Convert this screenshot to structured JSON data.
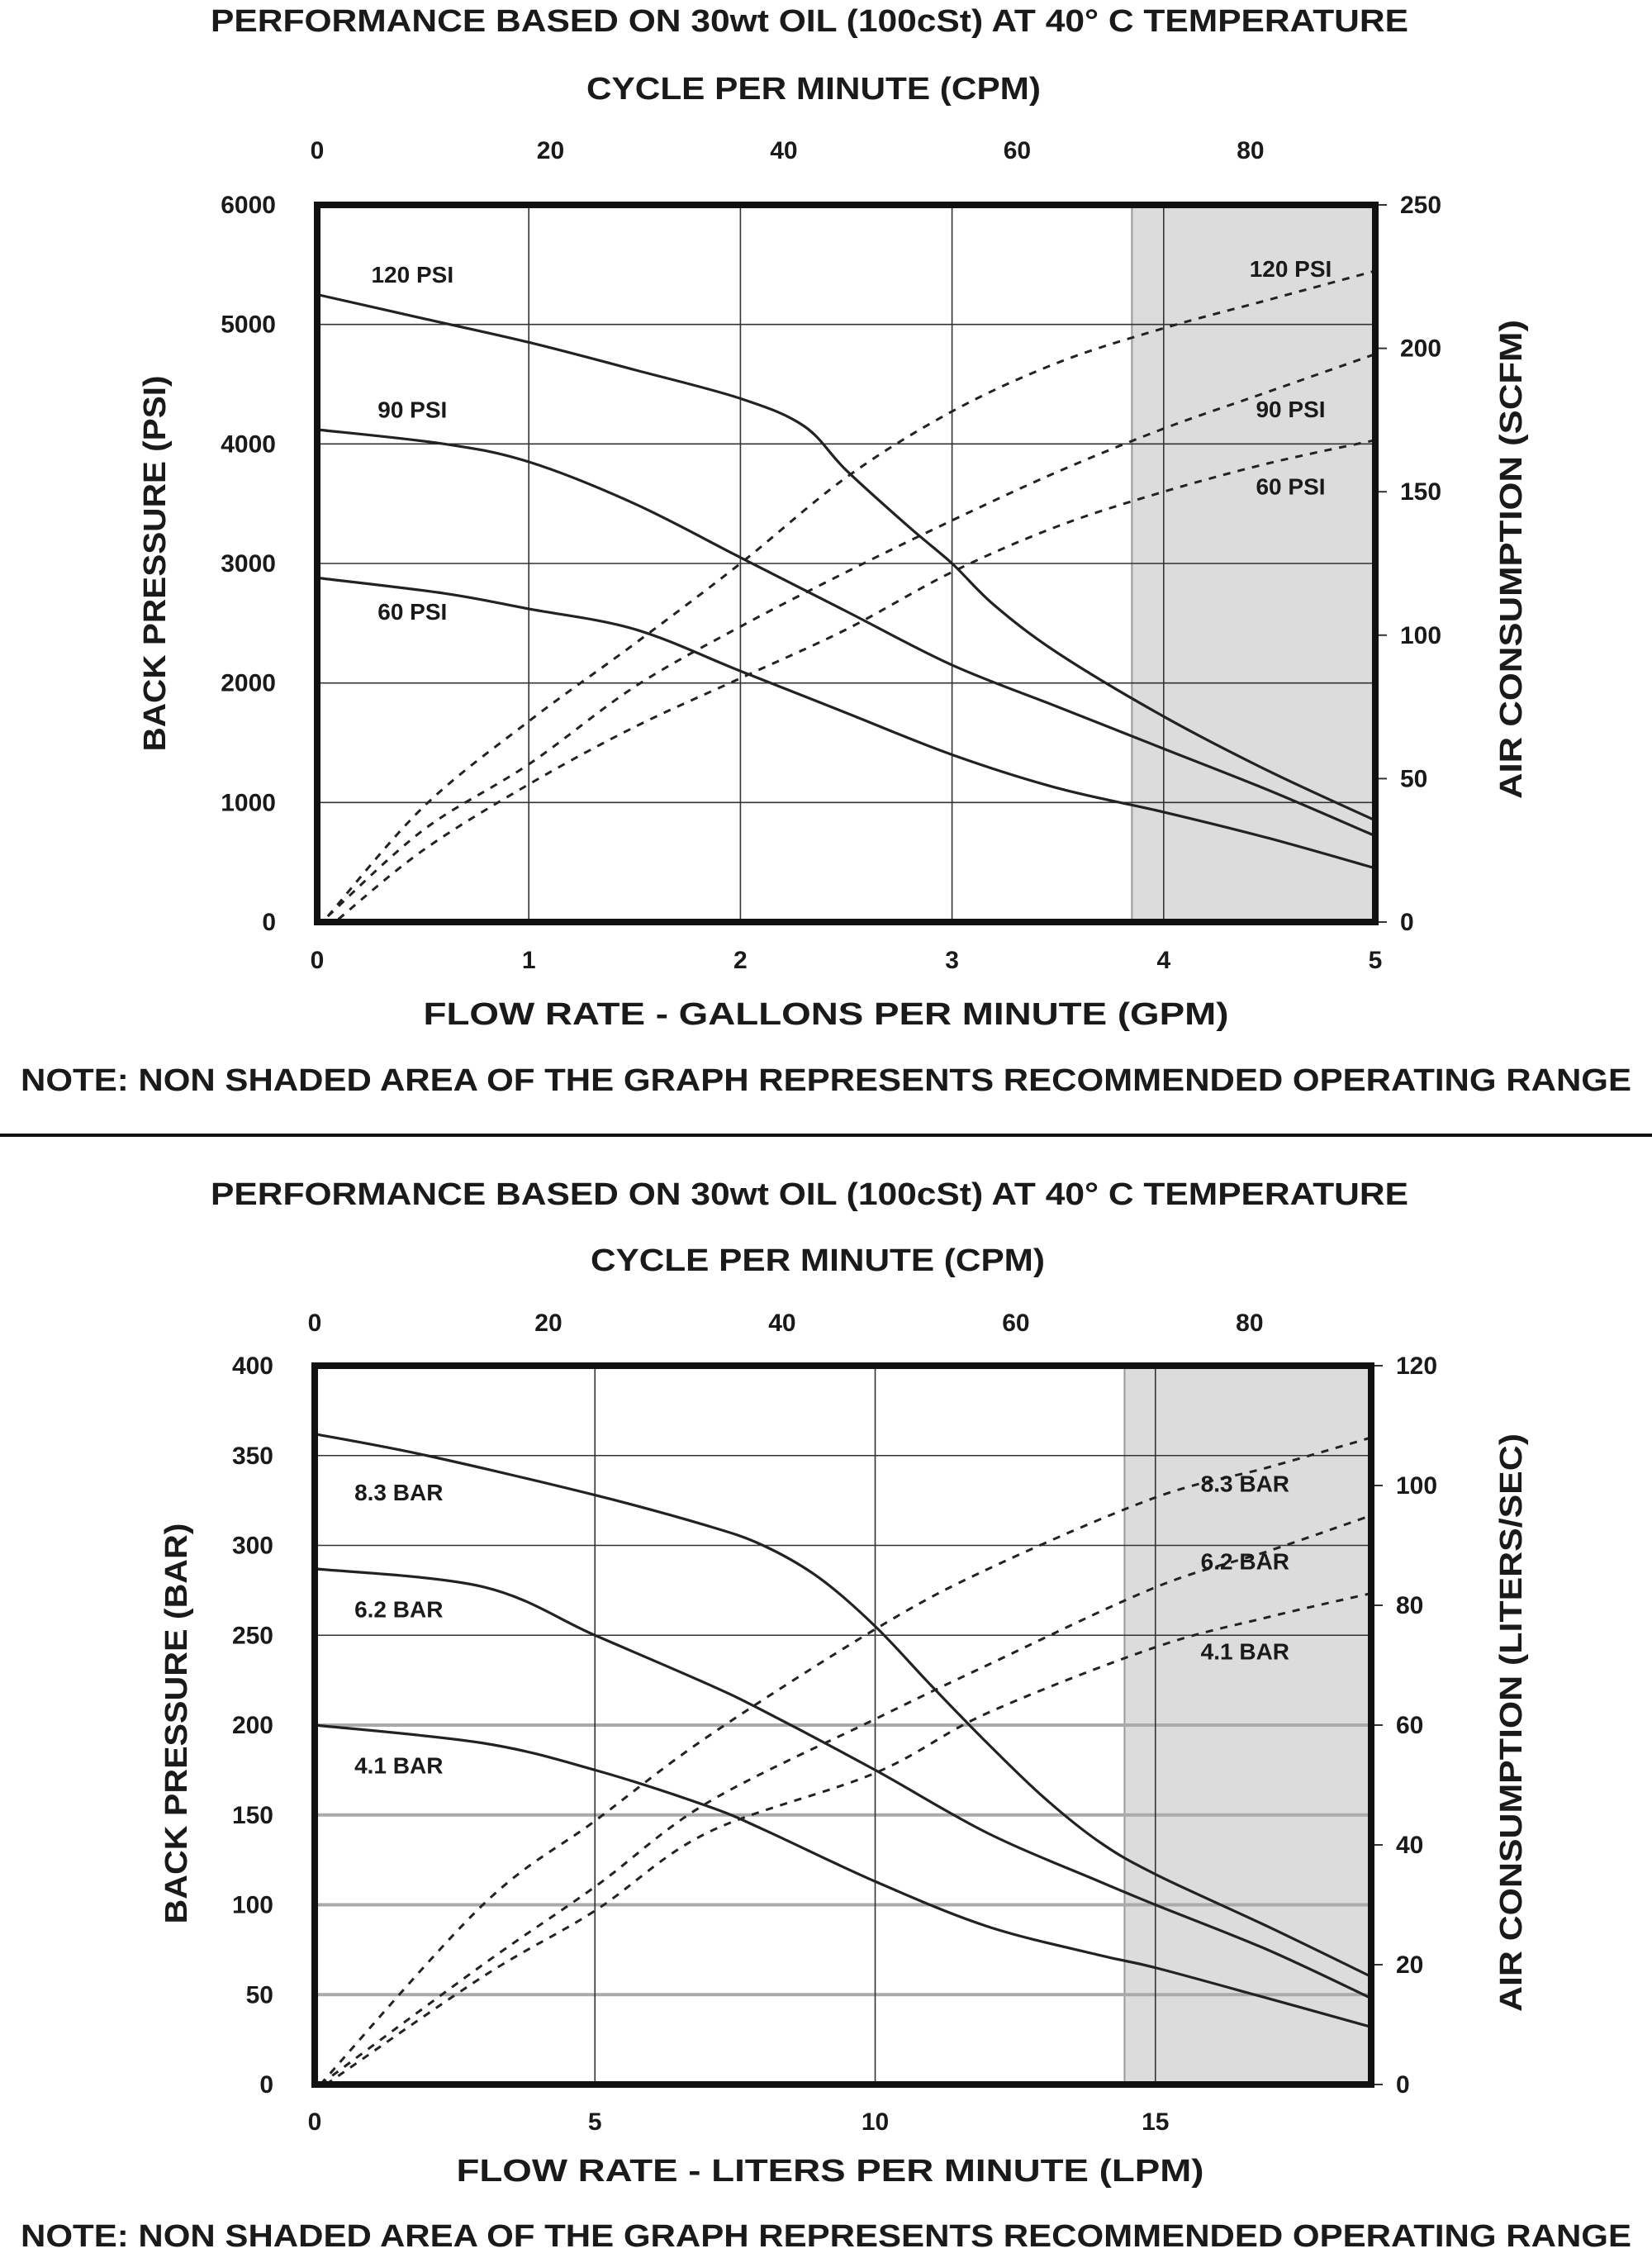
{
  "chart_data": [
    {
      "type": "line",
      "title": "PERFORMANCE BASED ON 30wt OIL (100cSt) AT 40° C TEMPERATURE",
      "top_axis_label": "CYCLE PER MINUTE (CPM)",
      "top_ticks": [
        "0",
        "20",
        "40",
        "60",
        "80"
      ],
      "top_tick_values": [
        0,
        20,
        40,
        60,
        80
      ],
      "xlim_top": [
        0,
        90.7
      ],
      "xlabel": "FLOW RATE - GALLONS PER MINUTE (GPM)",
      "xlim": [
        0,
        5
      ],
      "xticks": [
        0,
        1,
        2,
        3,
        4,
        5
      ],
      "ylabel": "BACK PRESSURE  (PSI)",
      "ylim": [
        0,
        6000
      ],
      "yticks": [
        0,
        1000,
        2000,
        3000,
        4000,
        5000,
        6000
      ],
      "y2label": "AIR CONSUMPTION  (SCFM)",
      "y2lim": [
        0,
        250
      ],
      "y2ticks": [
        0,
        50,
        100,
        150,
        200,
        250
      ],
      "shaded_from_x": 3.85,
      "grid": true,
      "note": "NOTE: NON SHADED AREA OF THE GRAPH REPRESENTS RECOMMENDED OPERATING RANGE",
      "pressure_series": [
        {
          "name": "120 PSI",
          "label_at": [
            0.45,
            5350
          ],
          "points": [
            [
              0,
              5250
            ],
            [
              0.5,
              5050
            ],
            [
              1,
              4850
            ],
            [
              1.5,
              4620
            ],
            [
              2,
              4380
            ],
            [
              2.3,
              4150
            ],
            [
              2.5,
              3780
            ],
            [
              2.8,
              3300
            ],
            [
              3,
              3000
            ],
            [
              3.2,
              2650
            ],
            [
              3.5,
              2250
            ],
            [
              4,
              1720
            ],
            [
              4.5,
              1260
            ],
            [
              5,
              850
            ]
          ]
        },
        {
          "name": "90 PSI",
          "label_at": [
            0.45,
            4220
          ],
          "points": [
            [
              0,
              4120
            ],
            [
              0.6,
              4000
            ],
            [
              1,
              3850
            ],
            [
              1.5,
              3500
            ],
            [
              2,
              3050
            ],
            [
              2.5,
              2600
            ],
            [
              3,
              2150
            ],
            [
              3.5,
              1800
            ],
            [
              4,
              1450
            ],
            [
              4.5,
              1100
            ],
            [
              5,
              720
            ]
          ]
        },
        {
          "name": "60 PSI",
          "label_at": [
            0.45,
            2530
          ],
          "points": [
            [
              0,
              2880
            ],
            [
              0.6,
              2750
            ],
            [
              1,
              2620
            ],
            [
              1.5,
              2450
            ],
            [
              2,
              2100
            ],
            [
              2.5,
              1750
            ],
            [
              3,
              1400
            ],
            [
              3.5,
              1120
            ],
            [
              4,
              920
            ],
            [
              4.5,
              700
            ],
            [
              5,
              450
            ]
          ]
        }
      ],
      "air_series": [
        {
          "name": "120 PSI",
          "label_at": [
            4.6,
            225
          ],
          "points": [
            [
              0.05,
              2
            ],
            [
              0.5,
              40
            ],
            [
              1,
              70
            ],
            [
              1.5,
              97
            ],
            [
              2,
              125
            ],
            [
              2.5,
              155
            ],
            [
              3,
              178
            ],
            [
              3.5,
              195
            ],
            [
              4,
              207
            ],
            [
              4.5,
              217
            ],
            [
              5,
              227
            ]
          ]
        },
        {
          "name": "90 PSI",
          "label_at": [
            4.6,
            176
          ],
          "points": [
            [
              0.05,
              2
            ],
            [
              0.5,
              32
            ],
            [
              1,
              55
            ],
            [
              1.5,
              82
            ],
            [
              2,
              103
            ],
            [
              2.5,
              122
            ],
            [
              3,
              140
            ],
            [
              3.5,
              157
            ],
            [
              4,
              172
            ],
            [
              4.5,
              185
            ],
            [
              5,
              198
            ]
          ]
        },
        {
          "name": "60 PSI",
          "label_at": [
            4.6,
            149
          ],
          "points": [
            [
              0.1,
              1
            ],
            [
              0.5,
              25
            ],
            [
              1,
              48
            ],
            [
              1.5,
              68
            ],
            [
              2,
              85
            ],
            [
              2.5,
              102
            ],
            [
              3,
              122
            ],
            [
              3.5,
              138
            ],
            [
              4,
              150
            ],
            [
              4.5,
              160
            ],
            [
              5,
              168
            ]
          ]
        }
      ]
    },
    {
      "type": "line",
      "title": "PERFORMANCE BASED ON 30wt OIL (100cSt) AT 40° C TEMPERATURE",
      "top_axis_label": "CYCLE PER MINUTE (CPM)",
      "top_ticks": [
        "0",
        "20",
        "40",
        "60",
        "80"
      ],
      "top_tick_values": [
        0,
        20,
        40,
        60,
        80
      ],
      "xlim_top": [
        0,
        90.4
      ],
      "xlabel": "FLOW RATE - LITERS PER MINUTE (LPM)",
      "xlim": [
        0,
        18.85
      ],
      "xticks": [
        0,
        5,
        10,
        15
      ],
      "ylabel": "BACK PRESSURE  (BAR)",
      "ylim": [
        0,
        400
      ],
      "yticks": [
        0,
        50,
        100,
        150,
        200,
        250,
        300,
        350,
        400
      ],
      "y2label": "AIR CONSUMPTION  (LITERS/SEC)",
      "y2lim": [
        0,
        120
      ],
      "y2ticks": [
        0,
        20,
        40,
        60,
        80,
        100,
        120
      ],
      "shaded_from_x": 14.45,
      "grid": true,
      "note": "NOTE: NON SHADED AREA OF THE GRAPH REPRESENTS RECOMMENDED OPERATING RANGE",
      "pressure_series": [
        {
          "name": "8.3 BAR",
          "label_at": [
            1.5,
            325
          ],
          "points": [
            [
              0,
              362
            ],
            [
              2,
              350
            ],
            [
              5,
              328
            ],
            [
              7,
              311
            ],
            [
              8,
              300
            ],
            [
              9,
              282
            ],
            [
              10,
              255
            ],
            [
              11,
              222
            ],
            [
              12,
              190
            ],
            [
              13,
              160
            ],
            [
              14,
              135
            ],
            [
              15,
              117
            ],
            [
              17,
              88
            ],
            [
              18.85,
              60
            ]
          ]
        },
        {
          "name": "6.2 BAR",
          "label_at": [
            1.5,
            260
          ],
          "points": [
            [
              0,
              287
            ],
            [
              3,
              277
            ],
            [
              5,
              250
            ],
            [
              7,
              223
            ],
            [
              8,
              208
            ],
            [
              10,
              175
            ],
            [
              12,
              140
            ],
            [
              14,
              113
            ],
            [
              15,
              100
            ],
            [
              17,
              75
            ],
            [
              18.85,
              48
            ]
          ]
        },
        {
          "name": "4.1 BAR",
          "label_at": [
            1.5,
            173
          ],
          "points": [
            [
              0,
              200
            ],
            [
              3,
              190
            ],
            [
              5,
              175
            ],
            [
              7,
              155
            ],
            [
              8,
              142
            ],
            [
              10,
              113
            ],
            [
              12,
              88
            ],
            [
              14,
              72
            ],
            [
              15,
              65
            ],
            [
              17,
              48
            ],
            [
              18.85,
              32
            ]
          ]
        }
      ],
      "air_series": [
        {
          "name": "8.3 BAR",
          "label_at": [
            16.6,
            99
          ],
          "points": [
            [
              0.1,
              0
            ],
            [
              3,
              30
            ],
            [
              5,
              44
            ],
            [
              7,
              58
            ],
            [
              10,
              76
            ],
            [
              12,
              86
            ],
            [
              15,
              98
            ],
            [
              17,
              103
            ],
            [
              18.85,
              108
            ]
          ]
        },
        {
          "name": "6.2 BAR",
          "label_at": [
            16.6,
            86
          ],
          "points": [
            [
              0.1,
              0
            ],
            [
              3,
              20
            ],
            [
              5,
              33
            ],
            [
              7,
              47
            ],
            [
              10,
              61
            ],
            [
              12,
              70
            ],
            [
              15,
              83
            ],
            [
              17,
              89
            ],
            [
              18.85,
              95
            ]
          ]
        },
        {
          "name": "4.1 BAR",
          "label_at": [
            16.6,
            71
          ],
          "points": [
            [
              0.2,
              0
            ],
            [
              3,
              18
            ],
            [
              5,
              29
            ],
            [
              7,
              42
            ],
            [
              10,
              52
            ],
            [
              12,
              62
            ],
            [
              15,
              73
            ],
            [
              17,
              78
            ],
            [
              18.85,
              82
            ]
          ]
        }
      ]
    }
  ]
}
